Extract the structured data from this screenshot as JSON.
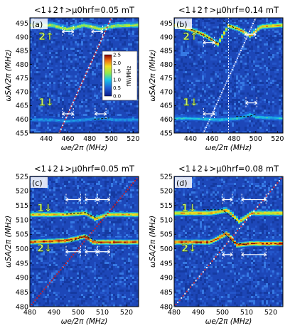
{
  "chart_data": [
    {
      "type": "heatmap",
      "title": "<1↓2↑>μ0hrf=0.05 mT",
      "panel_label": "(a)",
      "xlabel": "ωe/2π (MHz)",
      "ylabel": "ωSA/2π (MHz)",
      "xlim": [
        425,
        525
      ],
      "ylim": [
        455,
        497
      ],
      "xticks": [
        "440",
        "460",
        "480",
        "500",
        "520"
      ],
      "yticks": [
        "455",
        "460",
        "465",
        "470",
        "475",
        "480",
        "485",
        "490",
        "495"
      ],
      "mode_labels": [
        {
          "text": "2↑",
          "x": 433,
          "y": 489
        },
        {
          "text": "1↓",
          "x": 433,
          "y": 465
        }
      ],
      "bands": [
        {
          "name": "upper",
          "x": [
            425,
            445,
            460,
            475,
            490,
            505,
            525
          ],
          "y": [
            494.5,
            494.5,
            493.0,
            494.5,
            493.2,
            494.3,
            494.5
          ],
          "intensity": 1.6
        },
        {
          "name": "lower",
          "x": [
            425,
            445,
            460,
            475,
            490,
            505,
            525
          ],
          "y": [
            460.0,
            460.0,
            459.5,
            460.0,
            460.5,
            460.0,
            460.0
          ],
          "intensity": 0.8
        }
      ],
      "diagonal": {
        "x": [
          452,
          500
        ],
        "y": [
          455,
          497
        ]
      },
      "dashed_fit": [
        {
          "x": [
            484,
            498
          ],
          "y": [
            460,
            460.5
          ]
        }
      ],
      "gap_markers": [
        {
          "x1": 455,
          "x2": 465,
          "y": 492
        },
        {
          "x1": 482,
          "x2": 492,
          "y": 492
        },
        {
          "x1": 455,
          "x2": 465,
          "y": 462
        },
        {
          "x1": 485,
          "x2": 495,
          "y": 462
        }
      ],
      "colorbar": {
        "label": "fW/MHz",
        "ticks": [
          "0.0",
          "0.5",
          "1.0",
          "1.5",
          "2.0",
          "2.5"
        ],
        "range": [
          0,
          2.5
        ]
      }
    },
    {
      "type": "heatmap",
      "title": "<1↓2↑>μ0hrf=0.14 mT",
      "panel_label": "(b)",
      "xlabel": "ωe/2π (MHz)",
      "ylabel": "ωSA/2π (MHz)",
      "xlim": [
        425,
        525
      ],
      "ylim": [
        455,
        497
      ],
      "xticks": [
        "440",
        "460",
        "480",
        "500",
        "520"
      ],
      "yticks": [
        "455",
        "460",
        "465",
        "470",
        "475",
        "480",
        "485",
        "490",
        "495"
      ],
      "mode_labels": [
        {
          "text": "2↑",
          "x": 433,
          "y": 489
        },
        {
          "text": "1↓",
          "x": 433,
          "y": 465
        }
      ],
      "bands": [
        {
          "name": "upper",
          "x": [
            425,
            440,
            455,
            465,
            475,
            485,
            495,
            505,
            525
          ],
          "y": [
            494.5,
            493.0,
            490.5,
            487.5,
            494.3,
            493.0,
            490.5,
            494.0,
            494.5
          ],
          "intensity": 2.0
        },
        {
          "name": "lower",
          "x": [
            425,
            445,
            465,
            485,
            495,
            500,
            525
          ],
          "y": [
            460.5,
            460.5,
            460.0,
            460.5,
            462.0,
            461.0,
            460.5
          ],
          "intensity": 1.0
        }
      ],
      "diagonal": {
        "x": [
          452,
          500
        ],
        "y": [
          455,
          497
        ]
      },
      "dashed_fit": [
        {
          "x": [
            440,
            450,
            460,
            467
          ],
          "y": [
            493,
            491,
            489,
            487.5
          ]
        },
        {
          "x": [
            470,
            476,
            482
          ],
          "y": [
            496,
            494.3,
            493.0
          ]
        },
        {
          "x": [
            482,
            494,
            500
          ],
          "y": [
            461,
            461,
            462
          ]
        }
      ],
      "gap_markers": [
        {
          "x1": 452,
          "x2": 462,
          "y": 488
        },
        {
          "x1": 490,
          "x2": 500,
          "y": 491
        },
        {
          "x1": 452,
          "x2": 462,
          "y": 462
        },
        {
          "x1": 491,
          "x2": 501,
          "y": 466
        }
      ]
    },
    {
      "type": "heatmap",
      "title": "<1↓2↓>μ0hrf=0.05 mT",
      "panel_label": "(c)",
      "xlabel": "ωe/2π (MHz)",
      "ylabel": "ωSA/2π (MHz)",
      "xlim": [
        480,
        525
      ],
      "ylim": [
        480,
        525
      ],
      "xticks": [
        "480",
        "490",
        "500",
        "510",
        "520"
      ],
      "yticks": [
        "480",
        "485",
        "490",
        "495",
        "500",
        "505",
        "510",
        "515",
        "520",
        "525"
      ],
      "mode_labels": [
        {
          "text": "1↓",
          "x": 483,
          "y": 513
        },
        {
          "text": "2↓",
          "x": 483,
          "y": 499
        }
      ],
      "bands": [
        {
          "name": "upper",
          "x": [
            480,
            495,
            503,
            507,
            512,
            525
          ],
          "y": [
            512.0,
            512.0,
            512.5,
            510.5,
            512.0,
            512.0
          ],
          "intensity": 1.9
        },
        {
          "name": "lower",
          "x": [
            480,
            495,
            503,
            506,
            512,
            525
          ],
          "y": [
            502.5,
            503.0,
            504.5,
            502.5,
            502.5,
            502.5
          ],
          "intensity": 2.4
        }
      ],
      "diagonal": {
        "x": [
          480,
          525
        ],
        "y": [
          480,
          525
        ]
      },
      "dashed_fit": [
        {
          "x": [
            495,
            503,
            508
          ],
          "y": [
            512.0,
            512.5,
            510.5
          ]
        },
        {
          "x": [
            497,
            503,
            508
          ],
          "y": [
            502.5,
            504.5,
            502.5
          ]
        }
      ],
      "gap_markers": [
        {
          "x1": 495,
          "x2": 501,
          "y": 517
        },
        {
          "x1": 503,
          "x2": 508,
          "y": 517
        },
        {
          "x1": 508,
          "x2": 513,
          "y": 517
        },
        {
          "x1": 495,
          "x2": 501,
          "y": 499
        },
        {
          "x1": 503,
          "x2": 508,
          "y": 499
        },
        {
          "x1": 508,
          "x2": 513,
          "y": 499
        }
      ]
    },
    {
      "type": "heatmap",
      "title": "<1↓2↓>μ0hrf=0.08 mT",
      "panel_label": "(d)",
      "xlabel": "ωe/2π (MHz)",
      "ylabel": "ωSA/2π (MHz)",
      "xlim": [
        480,
        525
      ],
      "ylim": [
        480,
        525
      ],
      "xticks": [
        "480",
        "490",
        "500",
        "510",
        "520"
      ],
      "yticks": [
        "480",
        "485",
        "490",
        "495",
        "500",
        "505",
        "510",
        "515",
        "520",
        "525"
      ],
      "mode_labels": [
        {
          "text": "1↓",
          "x": 483,
          "y": 513
        },
        {
          "text": "2↓",
          "x": 483,
          "y": 499
        }
      ],
      "bands": [
        {
          "name": "upper",
          "x": [
            480,
            495,
            502,
            507,
            512,
            525
          ],
          "y": [
            512.5,
            512.5,
            513.5,
            509.5,
            512.5,
            512.5
          ],
          "intensity": 2.0
        },
        {
          "name": "lower",
          "x": [
            480,
            495,
            502,
            506,
            512,
            525
          ],
          "y": [
            502.5,
            502.5,
            505.5,
            501.5,
            502.0,
            502.0
          ],
          "intensity": 2.4
        }
      ],
      "diagonal": {
        "x": [
          480,
          525
        ],
        "y": [
          480,
          525
        ]
      },
      "dashed_fit": [
        {
          "x": [
            492,
            500,
            506
          ],
          "y": [
            513.5,
            513.5,
            509.5
          ]
        },
        {
          "x": [
            500,
            505,
            510
          ],
          "y": [
            506,
            502,
            501.5
          ]
        }
      ],
      "gap_markers": [
        {
          "x1": 500,
          "x2": 504,
          "y": 517
        },
        {
          "x1": 508,
          "x2": 518,
          "y": 517
        },
        {
          "x1": 500,
          "x2": 504,
          "y": 498
        },
        {
          "x1": 508,
          "x2": 518,
          "y": 498
        }
      ]
    }
  ]
}
